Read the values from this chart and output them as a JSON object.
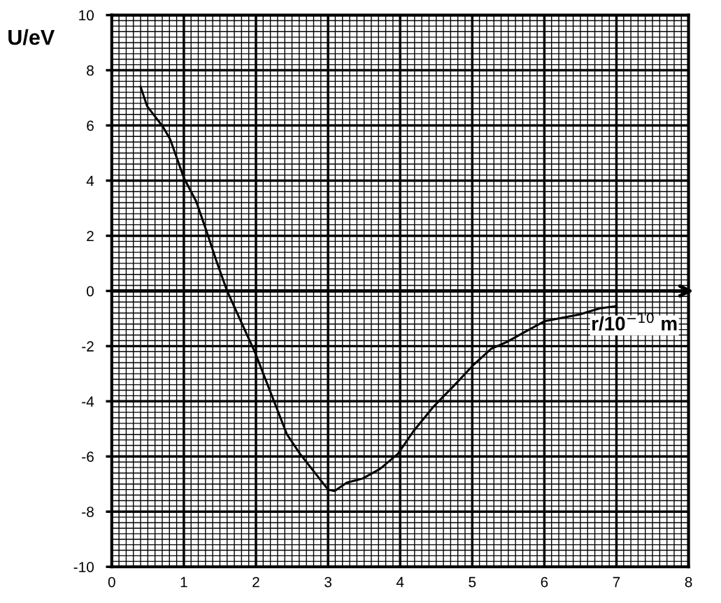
{
  "chart_data": {
    "type": "line",
    "xlabel": "r/10$^{−10}$ m",
    "ylabel": "U/eV",
    "x": [
      0.4,
      0.49,
      0.71,
      0.81,
      1.0,
      1.17,
      1.31,
      1.45,
      1.6,
      1.99,
      2.43,
      2.61,
      3.0,
      3.09,
      3.26,
      3.48,
      3.72,
      3.97,
      4.18,
      4.46,
      4.74,
      5.01,
      5.26,
      5.48,
      5.72,
      6.0,
      6.49,
      6.77,
      7.0
    ],
    "series": [
      {
        "color": "#000000",
        "values": [
          7.4,
          6.7,
          5.95,
          5.5,
          4.1,
          3.25,
          2.2,
          1.1,
          0.0,
          -2.25,
          -5.2,
          -5.9,
          -7.2,
          -7.25,
          -6.95,
          -6.8,
          -6.45,
          -5.9,
          -5.1,
          -4.2,
          -3.45,
          -2.7,
          -2.1,
          -1.85,
          -1.5,
          -1.1,
          -0.85,
          -0.63,
          -0.55
        ]
      }
    ],
    "xlim": [
      0,
      8
    ],
    "ylim": [
      -10,
      10
    ],
    "xticks": [
      0,
      1,
      2,
      3,
      4,
      5,
      6,
      7,
      8
    ],
    "yticks": [
      -10,
      -8,
      -6,
      -4,
      -2,
      0,
      2,
      4,
      6,
      8,
      10
    ],
    "grid": true,
    "ref_lines": [
      {
        "axis": "y",
        "value": 0,
        "line_style": "solid"
      }
    ],
    "line_style": "solid",
    "marker": "none"
  }
}
